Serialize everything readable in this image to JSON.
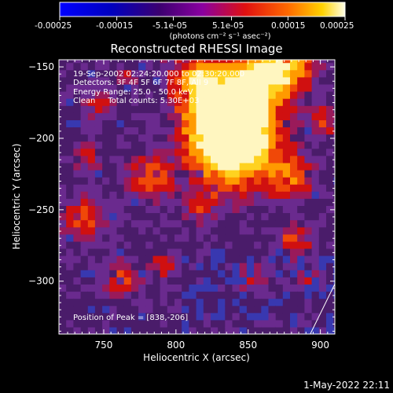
{
  "colorbar": {
    "ticks": [
      "-0.00025",
      "-0.00015",
      "-5.1e-05",
      "5.1e-05",
      "0.00015",
      "0.00025"
    ],
    "unit_label": "(photons cm⁻² s⁻¹ asec⁻²)",
    "range": [
      -0.00025,
      0.00025
    ]
  },
  "chart_data": {
    "type": "heatmap",
    "title": "Reconstructed RHESSI Image",
    "xlabel": "Heliocentric X (arcsec)",
    "ylabel": "Heliocentric Y (arcsec)",
    "xlim": [
      719,
      910
    ],
    "ylim": [
      -337,
      -145
    ],
    "x_ticks": [
      750,
      800,
      850,
      900
    ],
    "y_ticks": [
      -150,
      -200,
      -250,
      -300
    ],
    "x_tick_labels": [
      "750",
      "800",
      "850",
      "900"
    ],
    "y_tick_labels": [
      "−150",
      "−200",
      "−250",
      "−300"
    ],
    "peak": [
      838,
      -206
    ],
    "annotations": [
      "19-Sep-2002 02:24:20.000 to 02:30:20.000",
      "Detectors: 3F 4F 5F 6F 7F 8F, All 9",
      "Energy Range: 25.0 - 50.0 keV",
      "Clean     Total counts: 5.30E+03",
      "Position of Peak = [838,-206]"
    ],
    "limb_line": [
      [
        893,
        -337
      ],
      [
        910,
        -302
      ]
    ]
  },
  "footer": {
    "timestamp": "1-May-2022 22:11"
  }
}
